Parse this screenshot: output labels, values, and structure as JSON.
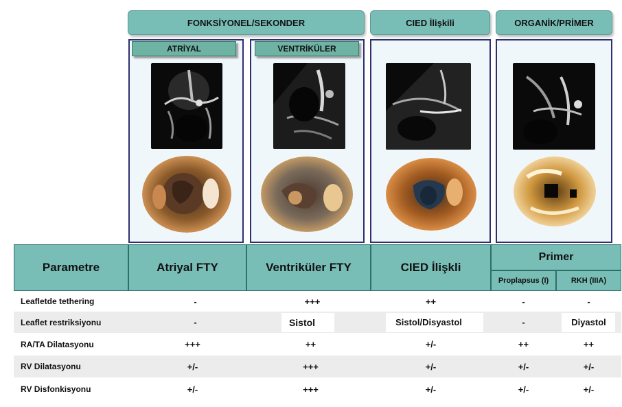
{
  "categories": {
    "functional": "FONKSİYONEL/SEKONDER",
    "cied": "CIED İlişkili",
    "organic": "ORGANİK/PRİMER"
  },
  "panel_labels": {
    "atrial": "ATRİYAL",
    "ventricular": "VENTRİKÜLER"
  },
  "table": {
    "headers": {
      "parameter": "Parametre",
      "atrial": "Atriyal FTY",
      "ventricular": "Ventriküler FTY",
      "cied": "CIED İlişkli",
      "primary": "Primer",
      "prolapse": "Proplapsus (I)",
      "rkh": "RKH (IIIA)"
    },
    "rows": [
      {
        "label": "Leafletde  tethering",
        "values": [
          "-",
          "+++",
          "++",
          "-",
          "-"
        ]
      },
      {
        "label": "Leaflet restriksiyonu",
        "values": [
          "-",
          "Sistol",
          "Sistol/Disyastol",
          "-",
          "Diyastol"
        ]
      },
      {
        "label": "RA/TA Dilatasyonu",
        "values": [
          "+++",
          "++",
          "+/-",
          "++",
          "++"
        ]
      },
      {
        "label": "RV Dilatasyonu",
        "values": [
          "+/-",
          "+++",
          "+/-",
          "+/-",
          "+/-"
        ]
      },
      {
        "label": "RV Disfonkisyonu",
        "values": [
          "+/-",
          "+++",
          "+/-",
          "+/-",
          "+/-"
        ]
      }
    ]
  }
}
